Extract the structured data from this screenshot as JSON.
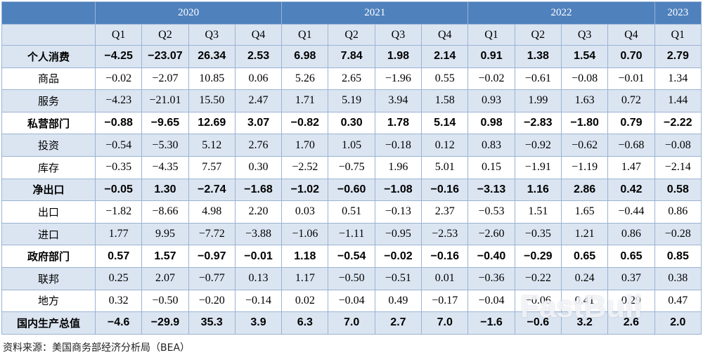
{
  "table": {
    "years": [
      "2020",
      "2021",
      "2022",
      "2023"
    ],
    "quarters": [
      "Q1",
      "Q2",
      "Q3",
      "Q4",
      "Q1",
      "Q2",
      "Q3",
      "Q4",
      "Q1",
      "Q2",
      "Q3",
      "Q4",
      "Q1"
    ],
    "rows": [
      {
        "label": "个人消费",
        "cells": [
          "−4.25",
          "−23.07",
          "26.34",
          "2.53",
          "6.98",
          "7.84",
          "1.98",
          "2.14",
          "0.91",
          "1.38",
          "1.54",
          "0.70",
          "2.79"
        ]
      },
      {
        "label": "商品",
        "cells": [
          "−0.02",
          "−2.07",
          "10.85",
          "0.06",
          "5.26",
          "2.65",
          "−1.96",
          "0.55",
          "−0.02",
          "−0.61",
          "−0.08",
          "−0.01",
          "1.34"
        ]
      },
      {
        "label": "服务",
        "cells": [
          "−4.23",
          "−21.01",
          "15.50",
          "2.47",
          "1.71",
          "5.19",
          "3.94",
          "1.58",
          "0.93",
          "1.99",
          "1.63",
          "0.72",
          "1.44"
        ]
      },
      {
        "label": "私营部门",
        "cells": [
          "−0.88",
          "−9.65",
          "12.69",
          "3.07",
          "−0.82",
          "0.30",
          "1.78",
          "5.14",
          "0.98",
          "−2.83",
          "−1.80",
          "0.79",
          "−2.22"
        ]
      },
      {
        "label": "投资",
        "cells": [
          "−0.54",
          "−5.30",
          "5.12",
          "2.76",
          "1.70",
          "1.05",
          "−0.18",
          "0.12",
          "0.83",
          "−0.92",
          "−0.62",
          "−0.68",
          "−0.08"
        ]
      },
      {
        "label": "库存",
        "cells": [
          "−0.35",
          "−4.35",
          "7.57",
          "0.30",
          "−2.52",
          "−0.75",
          "1.96",
          "5.01",
          "0.15",
          "−1.91",
          "−1.19",
          "1.47",
          "−2.14"
        ]
      },
      {
        "label": "净出口",
        "cells": [
          "−0.05",
          "1.30",
          "−2.74",
          "−1.68",
          "−1.02",
          "−0.60",
          "−1.08",
          "−0.16",
          "−3.13",
          "1.16",
          "2.86",
          "0.42",
          "0.58"
        ]
      },
      {
        "label": "出口",
        "cells": [
          "−1.82",
          "−8.66",
          "4.98",
          "2.20",
          "0.03",
          "0.51",
          "−0.13",
          "2.37",
          "−0.53",
          "1.51",
          "1.65",
          "−0.44",
          "0.86"
        ]
      },
      {
        "label": "进口",
        "cells": [
          "1.77",
          "9.95",
          "−7.72",
          "−3.88",
          "−1.06",
          "−1.11",
          "−0.95",
          "−2.53",
          "−2.60",
          "−0.35",
          "1.21",
          "0.86",
          "−0.28"
        ]
      },
      {
        "label": "政府部门",
        "cells": [
          "0.57",
          "1.57",
          "−0.97",
          "−0.01",
          "1.18",
          "−0.54",
          "−0.02",
          "−0.16",
          "−0.40",
          "−0.29",
          "0.65",
          "0.65",
          "0.85"
        ]
      },
      {
        "label": "联邦",
        "cells": [
          "0.25",
          "2.07",
          "−0.77",
          "0.13",
          "1.17",
          "−0.50",
          "−0.51",
          "0.01",
          "−0.36",
          "−0.22",
          "0.24",
          "0.37",
          "0.38"
        ]
      },
      {
        "label": "地方",
        "cells": [
          "0.32",
          "−0.50",
          "−0.20",
          "−0.14",
          "0.02",
          "−0.04",
          "0.49",
          "−0.17",
          "−0.04",
          "−0.06",
          "0.41",
          "0.29",
          "0.47"
        ]
      },
      {
        "label": "国内生产总值",
        "cells": [
          "−4.6",
          "−29.9",
          "35.3",
          "3.9",
          "6.3",
          "7.0",
          "2.7",
          "7.0",
          "−1.6",
          "−0.6",
          "3.2",
          "2.6",
          "2.0"
        ]
      }
    ]
  },
  "footer": "资料来源：美国商务部经济分析局（BEA）",
  "watermark": "FastBull"
}
